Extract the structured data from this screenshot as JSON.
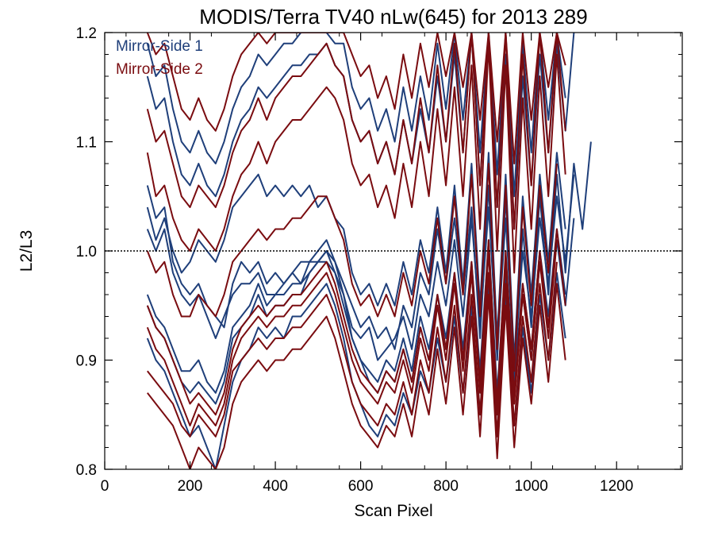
{
  "chart_data": {
    "type": "line",
    "title": "MODIS/Terra TV40 nLw(645) for 2013 289",
    "xlabel": "Scan Pixel",
    "ylabel": "L2/L3",
    "xlim": [
      0,
      1354
    ],
    "ylim": [
      0.8,
      1.2
    ],
    "xticks": [
      0,
      200,
      400,
      600,
      800,
      1000,
      1200
    ],
    "yticks": [
      0.8,
      0.9,
      1.0,
      1.1,
      1.2
    ],
    "xtick_labels": [
      "0",
      "200",
      "400",
      "600",
      "800",
      "1000",
      "1200"
    ],
    "ytick_labels": [
      "0.8",
      "0.9",
      "1.0",
      "1.1",
      "1.2"
    ],
    "reference_line": 1.0,
    "grid": false,
    "legend_position": "top-left",
    "colors": {
      "ms1": "#1f3f7a",
      "ms2": "#7a0c10"
    },
    "x": [
      100,
      120,
      140,
      160,
      180,
      200,
      220,
      240,
      260,
      280,
      300,
      320,
      340,
      360,
      380,
      400,
      420,
      440,
      460,
      480,
      500,
      520,
      540,
      560,
      580,
      600,
      620,
      640,
      660,
      680,
      700,
      720,
      740,
      760,
      780,
      800,
      820,
      840,
      860,
      880,
      900,
      920,
      940,
      960,
      980,
      1000,
      1020,
      1040,
      1060,
      1080,
      1100,
      1120,
      1140
    ],
    "series": [
      {
        "name": "Mirror-Side 1",
        "color": "#1f3f7a",
        "curves": [
          [
            1.06,
            1.03,
            1.04,
            0.99,
            0.97,
            0.96,
            0.97,
            0.95,
            0.94,
            0.93,
            0.97,
            0.99,
            0.98,
            0.99,
            0.97,
            0.98,
            0.97,
            0.98,
            0.99,
            0.99,
            1.0,
            1.01,
            0.99,
            0.97,
            0.95,
            0.93,
            0.94,
            0.92,
            0.93,
            0.91,
            0.95,
            0.93,
            0.98,
            0.96,
            1.02,
            0.97,
            1.03,
            0.96,
            1.04,
            0.92,
            1.06,
            0.9,
            1.05,
            0.88,
            1.02,
            0.93,
            1.05,
            0.96,
            1.07,
            0.98,
            1.08,
            1.02,
            1.1
          ],
          [
            1.02,
            1.0,
            1.02,
            0.98,
            0.96,
            0.95,
            0.96,
            0.94,
            0.92,
            0.94,
            0.96,
            0.97,
            0.97,
            0.98,
            0.96,
            0.96,
            0.97,
            0.98,
            0.97,
            0.99,
            0.99,
            1.0,
            0.98,
            0.96,
            0.93,
            0.92,
            0.93,
            0.9,
            0.91,
            0.92,
            0.94,
            0.91,
            0.96,
            0.94,
            0.99,
            0.95,
            1.01,
            0.94,
            1.03,
            0.93,
            1.04,
            0.91,
            1.03,
            0.89,
            1.0,
            0.94,
            1.03,
            0.97,
            1.05,
            0.99,
            1.07
          ],
          [
            0.95,
            0.93,
            0.92,
            0.9,
            0.88,
            0.87,
            0.88,
            0.87,
            0.86,
            0.88,
            0.92,
            0.93,
            0.94,
            0.96,
            0.94,
            0.95,
            0.95,
            0.96,
            0.96,
            0.98,
            0.99,
            1.0,
            0.99,
            0.96,
            0.92,
            0.9,
            0.88,
            0.87,
            0.89,
            0.88,
            0.91,
            0.88,
            0.93,
            0.9,
            0.95,
            0.91,
            0.97,
            0.9,
            0.98,
            0.88,
            1.0,
            0.86,
            0.98,
            0.87,
            0.96,
            0.9,
            0.99,
            0.93,
            1.01,
            0.95,
            1.03
          ],
          [
            0.92,
            0.9,
            0.89,
            0.87,
            0.85,
            0.83,
            0.84,
            0.82,
            0.8,
            0.84,
            0.88,
            0.9,
            0.91,
            0.93,
            0.92,
            0.93,
            0.92,
            0.94,
            0.94,
            0.95,
            0.96,
            0.97,
            0.95,
            0.92,
            0.88,
            0.86,
            0.84,
            0.83,
            0.85,
            0.84,
            0.87,
            0.85,
            0.89,
            0.87,
            0.92,
            0.88,
            0.94,
            0.87,
            0.95,
            0.85,
            0.97,
            0.83,
            0.96,
            0.84,
            0.93,
            0.87,
            0.96,
            0.9,
            0.98,
            0.92
          ],
          [
            0.96,
            0.94,
            0.93,
            0.91,
            0.89,
            0.89,
            0.9,
            0.88,
            0.87,
            0.89,
            0.93,
            0.94,
            0.95,
            0.97,
            0.95,
            0.96,
            0.96,
            0.97,
            0.97,
            0.98,
            0.99,
            0.99,
            0.98,
            0.95,
            0.92,
            0.9,
            0.89,
            0.88,
            0.9,
            0.89,
            0.92,
            0.89,
            0.94,
            0.91,
            0.96,
            0.92,
            0.98,
            0.91,
            0.99,
            0.89,
            1.01,
            0.87,
            0.99,
            0.88,
            0.97,
            0.91,
            1.0,
            0.94,
            1.02,
            0.96
          ],
          [
            1.16,
            1.13,
            1.14,
            1.1,
            1.07,
            1.06,
            1.08,
            1.06,
            1.05,
            1.07,
            1.1,
            1.12,
            1.13,
            1.15,
            1.14,
            1.15,
            1.16,
            1.17,
            1.17,
            1.18,
            1.18,
            1.19,
            1.17,
            1.16,
            1.12,
            1.1,
            1.11,
            1.08,
            1.1,
            1.07,
            1.12,
            1.08,
            1.13,
            1.09,
            1.16,
            1.1,
            1.18,
            1.09,
            1.2,
            1.06,
            1.2,
            1.04,
            1.18,
            1.02,
            1.16,
            1.06,
            1.18,
            1.09,
            1.19,
            1.11,
            1.2
          ],
          [
            1.19,
            1.16,
            1.17,
            1.13,
            1.1,
            1.09,
            1.11,
            1.09,
            1.08,
            1.1,
            1.13,
            1.15,
            1.16,
            1.18,
            1.17,
            1.18,
            1.19,
            1.19,
            1.2,
            1.2,
            1.2,
            1.2,
            1.19,
            1.19,
            1.15,
            1.13,
            1.14,
            1.11,
            1.13,
            1.1,
            1.15,
            1.11,
            1.16,
            1.12,
            1.19,
            1.13,
            1.2,
            1.12,
            1.2,
            1.09,
            1.2,
            1.07,
            1.2,
            1.05,
            1.19,
            1.09,
            1.2,
            1.12,
            1.2,
            1.14
          ],
          [
            1.04,
            1.01,
            1.03,
            1.0,
            0.98,
            0.99,
            1.01,
            1.0,
            0.99,
            1.01,
            1.04,
            1.05,
            1.06,
            1.07,
            1.05,
            1.06,
            1.05,
            1.06,
            1.05,
            1.06,
            1.04,
            1.05,
            1.03,
            1.02,
            0.98,
            0.96,
            0.97,
            0.95,
            0.97,
            0.95,
            0.99,
            0.96,
            1.01,
            0.98,
            1.04,
            0.98,
            1.06,
            0.97,
            1.08,
            0.95,
            1.09,
            0.92,
            1.07,
            0.9,
            1.05,
            0.96,
            1.07,
            0.99,
            1.09,
            1.02
          ]
        ]
      },
      {
        "name": "Mirror-Side 2",
        "color": "#7a0c10",
        "curves": [
          [
            1.09,
            1.05,
            1.06,
            1.03,
            1.01,
            1.0,
            1.02,
            1.01,
            1.0,
            1.02,
            1.05,
            1.07,
            1.08,
            1.1,
            1.08,
            1.1,
            1.11,
            1.12,
            1.12,
            1.13,
            1.14,
            1.15,
            1.14,
            1.12,
            1.08,
            1.06,
            1.07,
            1.04,
            1.06,
            1.03,
            1.08,
            1.04,
            1.1,
            1.05,
            1.13,
            1.06,
            1.15,
            1.05,
            1.17,
            1.02,
            1.19,
            1.0,
            1.17,
            0.98,
            1.14,
            1.02,
            1.16,
            1.05,
            1.18,
            1.07
          ],
          [
            0.87,
            0.86,
            0.85,
            0.84,
            0.82,
            0.8,
            0.82,
            0.81,
            0.8,
            0.82,
            0.86,
            0.88,
            0.89,
            0.9,
            0.89,
            0.9,
            0.9,
            0.91,
            0.91,
            0.92,
            0.93,
            0.94,
            0.92,
            0.89,
            0.86,
            0.84,
            0.83,
            0.82,
            0.84,
            0.83,
            0.86,
            0.83,
            0.88,
            0.85,
            0.91,
            0.86,
            0.93,
            0.85,
            0.94,
            0.83,
            0.96,
            0.81,
            0.95,
            0.82,
            0.92,
            0.86,
            0.95,
            0.88,
            0.97,
            0.9
          ],
          [
            0.95,
            0.93,
            0.92,
            0.9,
            0.88,
            0.86,
            0.87,
            0.86,
            0.85,
            0.87,
            0.91,
            0.93,
            0.94,
            0.95,
            0.94,
            0.95,
            0.95,
            0.96,
            0.96,
            0.97,
            0.98,
            0.99,
            0.97,
            0.94,
            0.91,
            0.89,
            0.88,
            0.87,
            0.89,
            0.88,
            0.91,
            0.88,
            0.93,
            0.9,
            0.96,
            0.91,
            0.98,
            0.9,
            0.99,
            0.88,
            1.01,
            0.86,
            1.0,
            0.87,
            0.97,
            0.91,
            1.0,
            0.93,
            1.02,
            0.95
          ],
          [
            0.89,
            0.88,
            0.87,
            0.86,
            0.84,
            0.83,
            0.85,
            0.84,
            0.83,
            0.85,
            0.89,
            0.9,
            0.91,
            0.92,
            0.91,
            0.92,
            0.92,
            0.93,
            0.93,
            0.94,
            0.95,
            0.96,
            0.94,
            0.91,
            0.88,
            0.86,
            0.85,
            0.84,
            0.86,
            0.85,
            0.88,
            0.85,
            0.9,
            0.87,
            0.93,
            0.88,
            0.95,
            0.87,
            0.96,
            0.85,
            0.98,
            0.83,
            0.97,
            0.84,
            0.94,
            0.88,
            0.97,
            0.9,
            0.99
          ],
          [
            1.13,
            1.1,
            1.11,
            1.08,
            1.05,
            1.04,
            1.06,
            1.05,
            1.04,
            1.06,
            1.09,
            1.11,
            1.12,
            1.14,
            1.12,
            1.14,
            1.15,
            1.16,
            1.16,
            1.17,
            1.18,
            1.19,
            1.17,
            1.16,
            1.12,
            1.1,
            1.11,
            1.08,
            1.1,
            1.07,
            1.12,
            1.08,
            1.14,
            1.09,
            1.17,
            1.1,
            1.19,
            1.09,
            1.2,
            1.06,
            1.2,
            1.04,
            1.2,
            1.02,
            1.18,
            1.06,
            1.2,
            1.09,
            1.2,
            1.11
          ],
          [
            1.2,
            1.18,
            1.19,
            1.16,
            1.13,
            1.12,
            1.14,
            1.12,
            1.11,
            1.13,
            1.16,
            1.18,
            1.19,
            1.2,
            1.19,
            1.2,
            1.2,
            1.2,
            1.2,
            1.2,
            1.2,
            1.2,
            1.2,
            1.2,
            1.18,
            1.16,
            1.17,
            1.14,
            1.16,
            1.13,
            1.18,
            1.14,
            1.19,
            1.15,
            1.2,
            1.16,
            1.2,
            1.15,
            1.2,
            1.12,
            1.2,
            1.1,
            1.2,
            1.08,
            1.2,
            1.12,
            1.2,
            1.15,
            1.2,
            1.17
          ],
          [
            1.0,
            0.98,
            0.99,
            0.96,
            0.94,
            0.94,
            0.96,
            0.95,
            0.94,
            0.96,
            0.99,
            1.0,
            1.01,
            1.02,
            1.01,
            1.02,
            1.02,
            1.03,
            1.03,
            1.04,
            1.05,
            1.05,
            1.03,
            1.01,
            0.97,
            0.95,
            0.96,
            0.94,
            0.96,
            0.94,
            0.98,
            0.95,
            1.0,
            0.97,
            1.03,
            0.97,
            1.05,
            0.96,
            1.07,
            0.94,
            1.08,
            0.91,
            1.06,
            0.89,
            1.04,
            0.95,
            1.06,
            0.98,
            1.08
          ],
          [
            0.93,
            0.91,
            0.9,
            0.88,
            0.86,
            0.84,
            0.86,
            0.85,
            0.84,
            0.86,
            0.9,
            0.92,
            0.93,
            0.94,
            0.93,
            0.94,
            0.94,
            0.95,
            0.95,
            0.96,
            0.97,
            0.98,
            0.96,
            0.93,
            0.9,
            0.88,
            0.87,
            0.86,
            0.88,
            0.87,
            0.9,
            0.87,
            0.92,
            0.89,
            0.95,
            0.9,
            0.97,
            0.89,
            0.98,
            0.87,
            1.0,
            0.85,
            0.99,
            0.86,
            0.96,
            0.9,
            0.99,
            0.92,
            1.01
          ]
        ]
      }
    ]
  }
}
